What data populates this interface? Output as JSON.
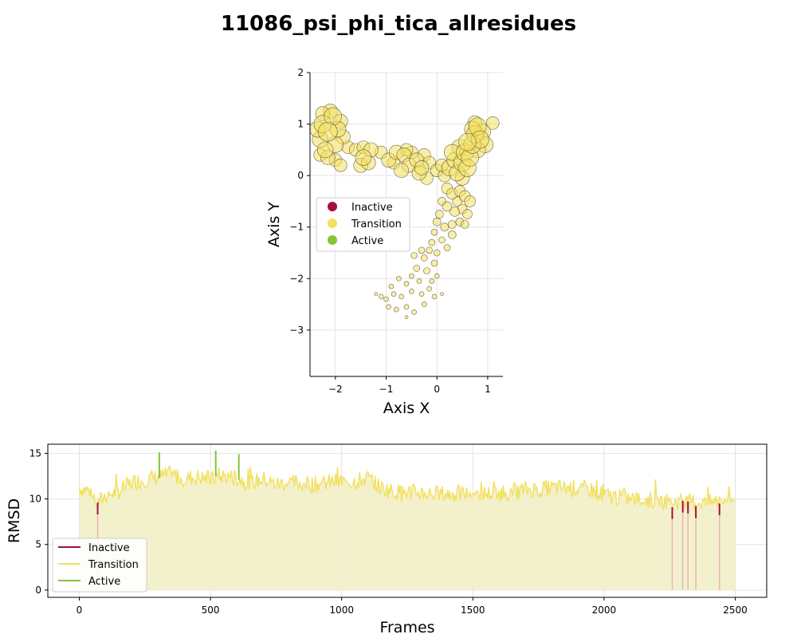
{
  "title": "11086_psi_phi_tica_allresidues",
  "colors": {
    "inactive": "#a3103f",
    "transition": "#f2e05e",
    "active": "#86c43a",
    "fill": "#f2efc6",
    "grid": "#e3e3e3"
  },
  "chart_data": [
    {
      "type": "scatter",
      "xlabel": "Axis X",
      "ylabel": "Axis Y",
      "xlim": [
        -2.5,
        1.3
      ],
      "ylim": [
        -3.9,
        2.0
      ],
      "xticks": [
        -2,
        -1,
        0,
        1
      ],
      "xtick_labels": [
        "−2",
        "−1",
        "0",
        "1"
      ],
      "yticks": [
        2,
        1,
        0,
        -1,
        -2,
        -3
      ],
      "ytick_labels": [
        "2",
        "1",
        "0",
        "−1",
        "−2",
        "−3"
      ],
      "grid": true,
      "legend_position": "center-left",
      "legend": [
        "Inactive",
        "Transition",
        "Active"
      ],
      "series": [
        {
          "name": "Transition",
          "points": [
            {
              "x": -2.15,
              "y": 0.85,
              "s": 12
            },
            {
              "x": -2.25,
              "y": 1.0,
              "s": 11
            },
            {
              "x": -2.05,
              "y": 1.15,
              "s": 11
            },
            {
              "x": -2.3,
              "y": 0.7,
              "s": 10
            },
            {
              "x": -2.0,
              "y": 0.6,
              "s": 10
            },
            {
              "x": -2.2,
              "y": 0.5,
              "s": 10
            },
            {
              "x": -1.95,
              "y": 0.9,
              "s": 10
            },
            {
              "x": -2.35,
              "y": 0.9,
              "s": 10
            },
            {
              "x": -2.1,
              "y": 1.25,
              "s": 9
            },
            {
              "x": -1.85,
              "y": 0.75,
              "s": 9
            },
            {
              "x": -2.3,
              "y": 0.4,
              "s": 8
            },
            {
              "x": -2.0,
              "y": 0.3,
              "s": 8
            },
            {
              "x": -1.9,
              "y": 0.2,
              "s": 8
            },
            {
              "x": -1.75,
              "y": 0.55,
              "s": 8
            },
            {
              "x": -2.15,
              "y": 0.35,
              "s": 9
            },
            {
              "x": -1.9,
              "y": 1.05,
              "s": 9
            },
            {
              "x": -2.25,
              "y": 1.2,
              "s": 9
            },
            {
              "x": -1.45,
              "y": 0.35,
              "s": 10
            },
            {
              "x": -1.5,
              "y": 0.2,
              "s": 9
            },
            {
              "x": -1.3,
              "y": 0.5,
              "s": 9
            },
            {
              "x": -1.6,
              "y": 0.5,
              "s": 8
            },
            {
              "x": -1.35,
              "y": 0.25,
              "s": 9
            },
            {
              "x": -1.45,
              "y": 0.55,
              "s": 8
            },
            {
              "x": -1.1,
              "y": 0.45,
              "s": 8
            },
            {
              "x": -0.95,
              "y": 0.3,
              "s": 9
            },
            {
              "x": -0.8,
              "y": 0.45,
              "s": 9
            },
            {
              "x": -0.65,
              "y": 0.4,
              "s": 9
            },
            {
              "x": -0.55,
              "y": 0.2,
              "s": 9
            },
            {
              "x": -0.7,
              "y": 0.1,
              "s": 9
            },
            {
              "x": -0.5,
              "y": 0.45,
              "s": 8
            },
            {
              "x": -0.4,
              "y": 0.3,
              "s": 9
            },
            {
              "x": -0.35,
              "y": 0.05,
              "s": 9
            },
            {
              "x": -0.25,
              "y": 0.4,
              "s": 8
            },
            {
              "x": -0.15,
              "y": 0.25,
              "s": 8
            },
            {
              "x": -0.85,
              "y": 0.25,
              "s": 8
            },
            {
              "x": -0.6,
              "y": 0.5,
              "s": 8
            },
            {
              "x": -0.3,
              "y": 0.15,
              "s": 9
            },
            {
              "x": -0.2,
              "y": -0.05,
              "s": 8
            },
            {
              "x": 0.0,
              "y": 0.1,
              "s": 8
            },
            {
              "x": 0.15,
              "y": 0.0,
              "s": 8
            },
            {
              "x": 0.1,
              "y": 0.2,
              "s": 8
            },
            {
              "x": 0.25,
              "y": 0.15,
              "s": 10
            },
            {
              "x": 0.35,
              "y": 0.3,
              "s": 10
            },
            {
              "x": 0.4,
              "y": 0.05,
              "s": 10
            },
            {
              "x": 0.5,
              "y": 0.25,
              "s": 11
            },
            {
              "x": 0.55,
              "y": 0.45,
              "s": 11
            },
            {
              "x": 0.45,
              "y": 0.55,
              "s": 10
            },
            {
              "x": 0.6,
              "y": 0.15,
              "s": 11
            },
            {
              "x": 0.65,
              "y": 0.35,
              "s": 11
            },
            {
              "x": 0.7,
              "y": 0.6,
              "s": 11
            },
            {
              "x": 0.75,
              "y": 0.8,
              "s": 11
            },
            {
              "x": 0.8,
              "y": 0.95,
              "s": 11
            },
            {
              "x": 0.85,
              "y": 0.7,
              "s": 11
            },
            {
              "x": 0.9,
              "y": 0.85,
              "s": 10
            },
            {
              "x": 0.7,
              "y": 0.9,
              "s": 10
            },
            {
              "x": 0.95,
              "y": 0.6,
              "s": 10
            },
            {
              "x": 1.1,
              "y": 1.02,
              "s": 8
            },
            {
              "x": 0.3,
              "y": 0.45,
              "s": 10
            },
            {
              "x": 0.6,
              "y": 0.65,
              "s": 11
            },
            {
              "x": 0.8,
              "y": 0.5,
              "s": 10
            },
            {
              "x": 0.75,
              "y": 1.02,
              "s": 9
            },
            {
              "x": 0.5,
              "y": -0.05,
              "s": 9
            },
            {
              "x": 0.2,
              "y": -0.25,
              "s": 7
            },
            {
              "x": 0.3,
              "y": -0.35,
              "s": 7
            },
            {
              "x": 0.45,
              "y": -0.3,
              "s": 7
            },
            {
              "x": 0.55,
              "y": -0.4,
              "s": 7
            },
            {
              "x": 0.65,
              "y": -0.5,
              "s": 7
            },
            {
              "x": 0.4,
              "y": -0.5,
              "s": 6
            },
            {
              "x": 0.5,
              "y": -0.65,
              "s": 6
            },
            {
              "x": 0.35,
              "y": -0.7,
              "s": 6
            },
            {
              "x": 0.6,
              "y": -0.75,
              "s": 6
            },
            {
              "x": 0.2,
              "y": -0.6,
              "s": 6
            },
            {
              "x": 0.1,
              "y": -0.5,
              "s": 5
            },
            {
              "x": 0.05,
              "y": -0.75,
              "s": 5
            },
            {
              "x": 0.0,
              "y": -0.9,
              "s": 5
            },
            {
              "x": 0.15,
              "y": -1.0,
              "s": 5
            },
            {
              "x": 0.3,
              "y": -0.95,
              "s": 5
            },
            {
              "x": 0.45,
              "y": -0.9,
              "s": 5
            },
            {
              "x": 0.3,
              "y": -1.15,
              "s": 5
            },
            {
              "x": 0.1,
              "y": -1.25,
              "s": 4
            },
            {
              "x": -0.05,
              "y": -1.1,
              "s": 4
            },
            {
              "x": -0.1,
              "y": -1.3,
              "s": 4
            },
            {
              "x": -0.15,
              "y": -1.45,
              "s": 4
            },
            {
              "x": 0.0,
              "y": -1.5,
              "s": 4
            },
            {
              "x": -0.25,
              "y": -1.6,
              "s": 4
            },
            {
              "x": -0.05,
              "y": -1.7,
              "s": 4
            },
            {
              "x": -0.3,
              "y": -1.45,
              "s": 4
            },
            {
              "x": -0.2,
              "y": -1.85,
              "s": 4
            },
            {
              "x": -0.4,
              "y": -1.8,
              "s": 4
            },
            {
              "x": -0.5,
              "y": -1.95,
              "s": 3
            },
            {
              "x": -0.6,
              "y": -2.1,
              "s": 3
            },
            {
              "x": -0.35,
              "y": -2.05,
              "s": 3
            },
            {
              "x": -0.15,
              "y": -2.2,
              "s": 3
            },
            {
              "x": -0.05,
              "y": -2.35,
              "s": 3
            },
            {
              "x": -0.3,
              "y": -2.3,
              "s": 3
            },
            {
              "x": -0.5,
              "y": -2.25,
              "s": 3
            },
            {
              "x": -0.7,
              "y": -2.35,
              "s": 3
            },
            {
              "x": -0.85,
              "y": -2.3,
              "s": 3
            },
            {
              "x": -1.0,
              "y": -2.4,
              "s": 3
            },
            {
              "x": -1.1,
              "y": -2.35,
              "s": 3
            },
            {
              "x": -0.95,
              "y": -2.55,
              "s": 3
            },
            {
              "x": -0.8,
              "y": -2.6,
              "s": 3
            },
            {
              "x": -0.6,
              "y": -2.55,
              "s": 3
            },
            {
              "x": -0.45,
              "y": -2.65,
              "s": 3
            },
            {
              "x": -0.6,
              "y": -2.75,
              "s": 2
            },
            {
              "x": -0.25,
              "y": -2.5,
              "s": 3
            },
            {
              "x": 0.1,
              "y": -2.3,
              "s": 2
            },
            {
              "x": 0.0,
              "y": -1.95,
              "s": 3
            },
            {
              "x": -0.75,
              "y": -2.0,
              "s": 3
            },
            {
              "x": -0.9,
              "y": -2.15,
              "s": 3
            },
            {
              "x": -1.2,
              "y": -2.3,
              "s": 2
            },
            {
              "x": 0.55,
              "y": -0.95,
              "s": 5
            },
            {
              "x": 0.2,
              "y": -1.4,
              "s": 4
            },
            {
              "x": -0.45,
              "y": -1.55,
              "s": 4
            },
            {
              "x": -0.1,
              "y": -2.05,
              "s": 3
            }
          ]
        }
      ]
    },
    {
      "type": "line",
      "xlabel": "Frames",
      "ylabel": "RMSD",
      "xlim": [
        -120,
        2620
      ],
      "ylim": [
        -0.8,
        16
      ],
      "xticks": [
        0,
        500,
        1000,
        1500,
        2000,
        2500
      ],
      "xtick_labels": [
        "0",
        "500",
        "1000",
        "1500",
        "2000",
        "2500"
      ],
      "yticks": [
        0,
        5,
        10,
        15
      ],
      "ytick_labels": [
        "0",
        "5",
        "10",
        "15"
      ],
      "grid": true,
      "legend_position": "lower-left",
      "legend": [
        "Inactive",
        "Transition",
        "Active"
      ],
      "baseline_points": [
        [
          0,
          11.2
        ],
        [
          40,
          10.9
        ],
        [
          70,
          9.5
        ],
        [
          100,
          10.4
        ],
        [
          150,
          10.8
        ],
        [
          200,
          11.8
        ],
        [
          250,
          12.1
        ],
        [
          300,
          12.4
        ],
        [
          350,
          12.7
        ],
        [
          400,
          12.2
        ],
        [
          450,
          12.4
        ],
        [
          500,
          12.1
        ],
        [
          550,
          12.5
        ],
        [
          600,
          12.3
        ],
        [
          650,
          11.7
        ],
        [
          700,
          12.2
        ],
        [
          750,
          11.6
        ],
        [
          800,
          11.8
        ],
        [
          850,
          11.7
        ],
        [
          900,
          11.6
        ],
        [
          950,
          11.8
        ],
        [
          1000,
          11.9
        ],
        [
          1050,
          11.9
        ],
        [
          1100,
          12.3
        ],
        [
          1150,
          11.2
        ],
        [
          1200,
          10.8
        ],
        [
          1300,
          10.7
        ],
        [
          1400,
          10.5
        ],
        [
          1500,
          10.6
        ],
        [
          1600,
          10.6
        ],
        [
          1700,
          11.0
        ],
        [
          1800,
          11.2
        ],
        [
          1900,
          11.2
        ],
        [
          1950,
          11.0
        ],
        [
          2000,
          10.4
        ],
        [
          2100,
          10.0
        ],
        [
          2200,
          9.8
        ],
        [
          2300,
          9.7
        ],
        [
          2400,
          9.6
        ],
        [
          2500,
          10.1
        ]
      ],
      "inactive_segments": [
        [
          70,
          8.3
        ],
        [
          2260,
          7.8
        ],
        [
          2300,
          8.5
        ],
        [
          2320,
          8.4
        ],
        [
          2350,
          7.9
        ],
        [
          2440,
          8.2
        ]
      ],
      "active_segments": [
        [
          305,
          13.8
        ],
        [
          520,
          14.0
        ],
        [
          608,
          13.6
        ]
      ]
    }
  ]
}
